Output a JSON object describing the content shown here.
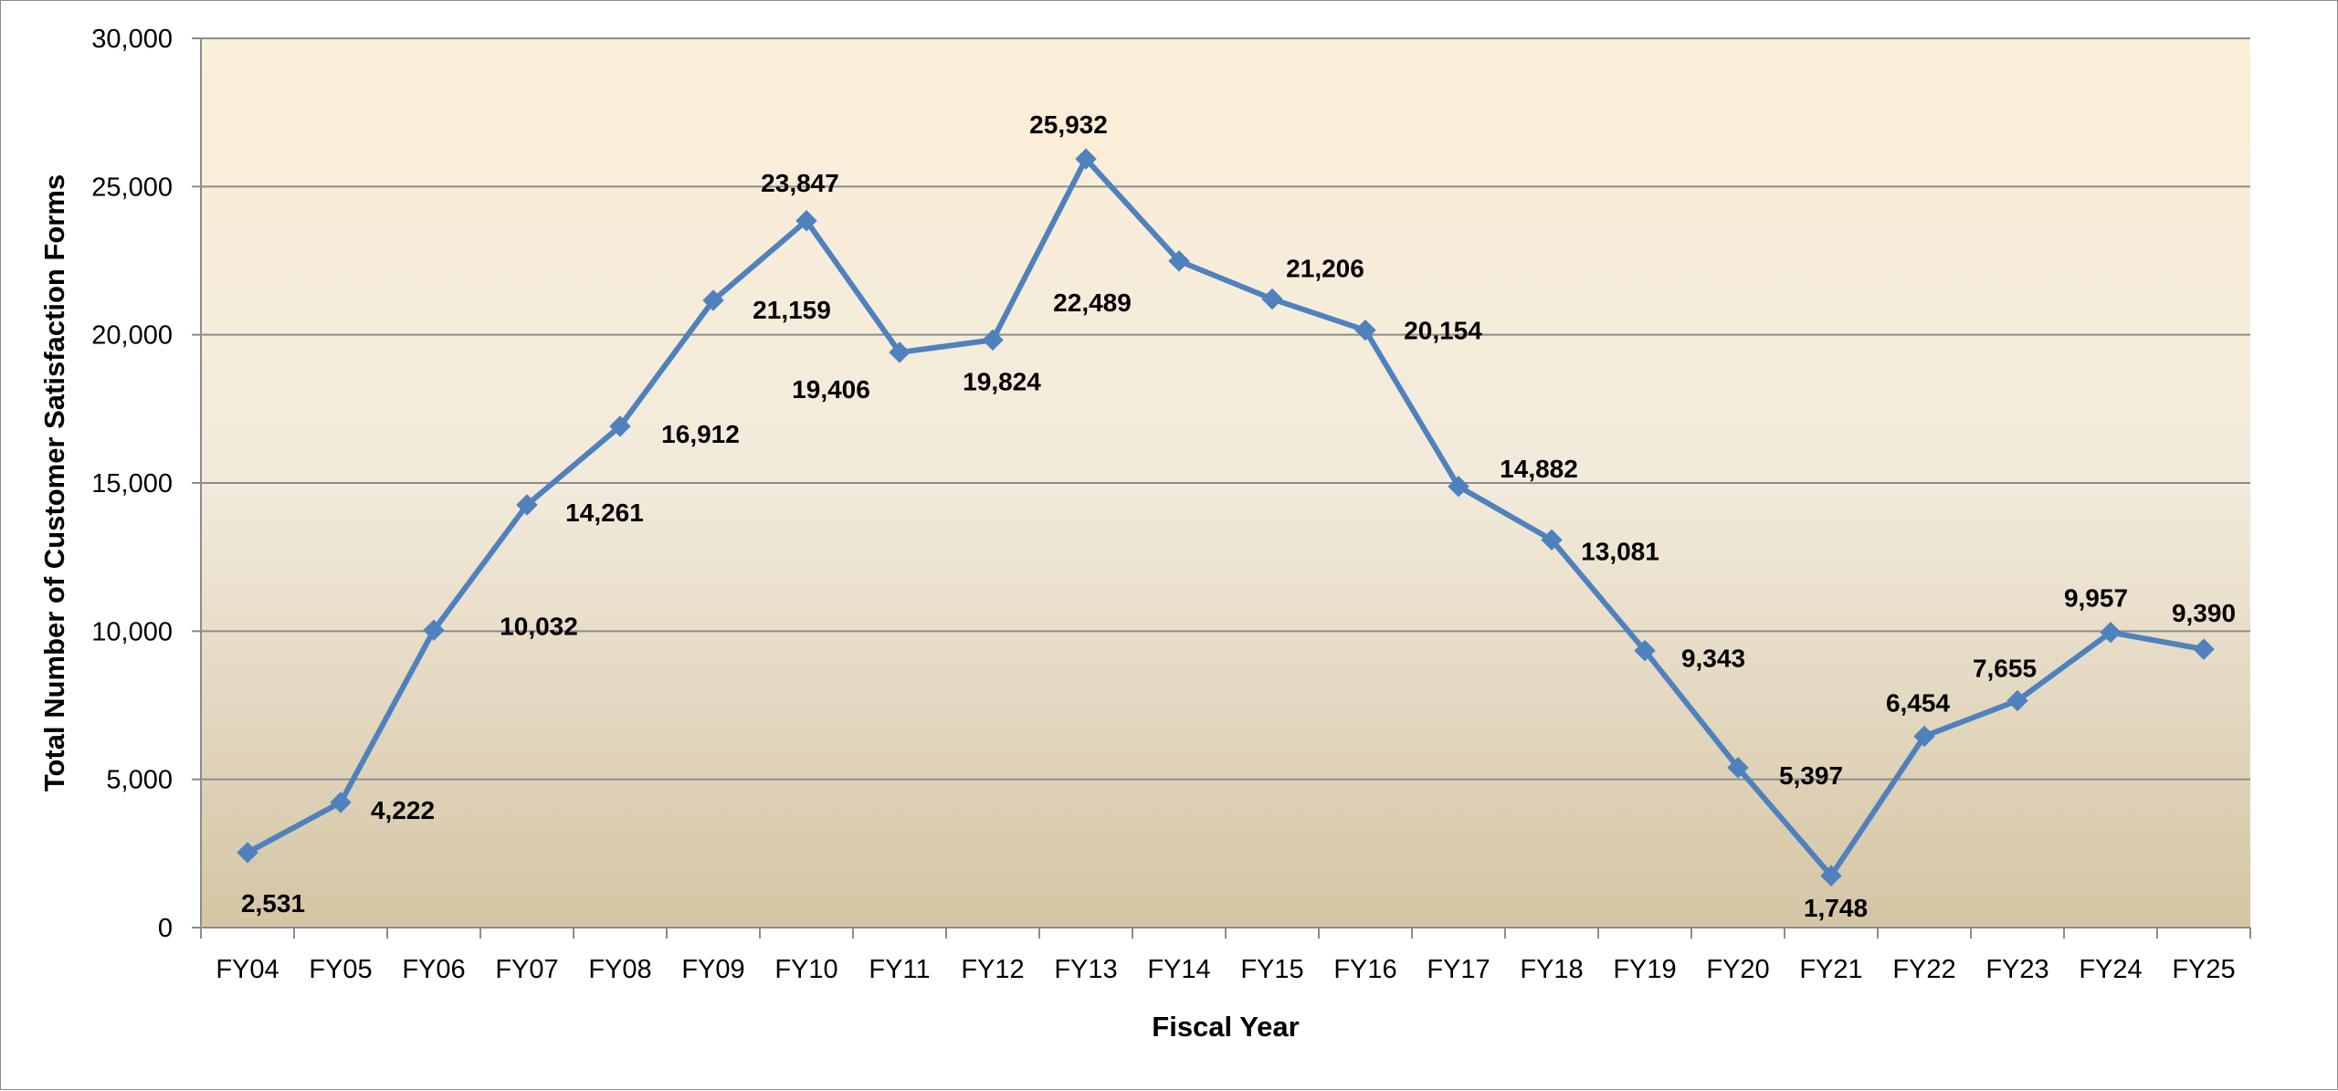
{
  "chart_data": {
    "type": "line",
    "title": "",
    "xlabel": "Fiscal Year",
    "ylabel": "Total Number of Customer Satisfaction Forms",
    "ylim": [
      0,
      30000
    ],
    "yticks": [
      0,
      5000,
      10000,
      15000,
      20000,
      25000,
      30000
    ],
    "ytick_labels": [
      "0",
      "5,000",
      "10,000",
      "15,000",
      "20,000",
      "25,000",
      "30,000"
    ],
    "categories": [
      "FY04",
      "FY05",
      "FY06",
      "FY07",
      "FY08",
      "FY09",
      "FY10",
      "FY11",
      "FY12",
      "FY13",
      "FY14",
      "FY15",
      "FY16",
      "FY17",
      "FY18",
      "FY19",
      "FY20",
      "FY21",
      "FY22",
      "FY23",
      "FY24",
      "FY25"
    ],
    "series": [
      {
        "values": [
          2531,
          4222,
          10032,
          14261,
          16912,
          21159,
          23847,
          19406,
          19824,
          25932,
          22489,
          21206,
          20154,
          14882,
          13081,
          9343,
          5397,
          1748,
          6454,
          7655,
          9957,
          9390
        ],
        "data_labels": [
          "2,531",
          "4,222",
          "10,032",
          "14,261",
          "16,912",
          "21,159",
          "23,847",
          "19,406",
          "19,824",
          "25,932",
          "22,489",
          "21,206",
          "20,154",
          "14,882",
          "13,081",
          "9,343",
          "5,397",
          "1,748",
          "6,454",
          "7,655",
          "9,957",
          "9,390"
        ]
      }
    ],
    "grid": true,
    "legend": "none",
    "colors": {
      "line": "#4f81bd",
      "grid": "#8c8c8c",
      "plot_bg_top": "#fcefd8",
      "plot_bg_mid": "#f2eadb",
      "plot_bg_bottom": "#d4c5a4"
    }
  }
}
